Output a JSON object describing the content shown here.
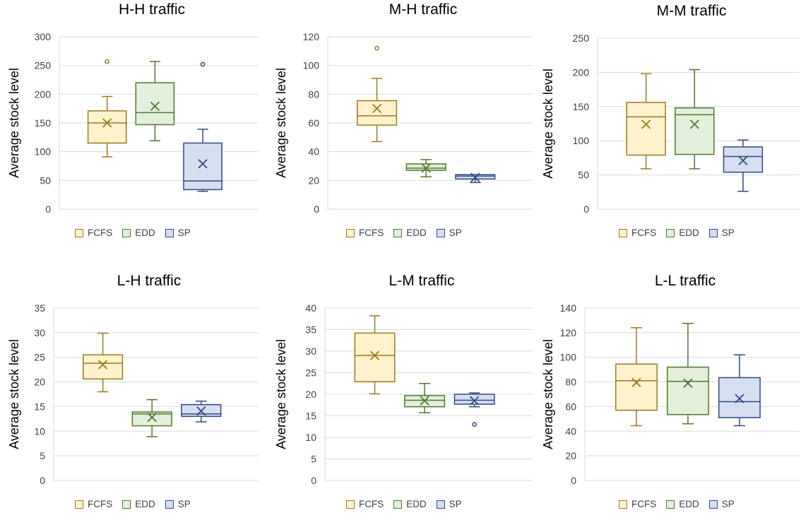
{
  "palette": {
    "FCFS": {
      "stroke": "#9C7A1E",
      "fill": "#FFF2CC"
    },
    "EDD": {
      "stroke": "#4E7A2E",
      "fill": "#E2EFDA"
    },
    "SP": {
      "stroke": "#2F4A84",
      "fill": "#D6DFF0"
    },
    "grid": "#D9D9D9",
    "text": "#404040"
  },
  "chart_data": [
    {
      "type": "boxplot",
      "title": "H-H traffic",
      "ylabel": "Average stock level",
      "ylim": [
        0,
        300
      ],
      "yticks": [
        "0",
        "50",
        "100",
        "150",
        "200",
        "250",
        "300"
      ],
      "grid": true,
      "legend_position": "bottom",
      "series": [
        {
          "name": "FCFS",
          "min": 91,
          "q1": 115,
          "median": 150,
          "q3": 171,
          "max": 196,
          "mean": 150,
          "outliers": [
            257
          ]
        },
        {
          "name": "EDD",
          "min": 119,
          "q1": 147,
          "median": 168,
          "q3": 220,
          "max": 257,
          "mean": 179,
          "outliers": []
        },
        {
          "name": "SP",
          "min": 31,
          "q1": 34,
          "median": 49,
          "q3": 115,
          "max": 139,
          "mean": 79,
          "outliers": [
            252
          ]
        }
      ]
    },
    {
      "type": "boxplot",
      "title": "M-H traffic",
      "ylabel": "Average stock level",
      "ylim": [
        0,
        120
      ],
      "yticks": [
        "0",
        "20",
        "40",
        "60",
        "80",
        "100",
        "120"
      ],
      "grid": true,
      "legend_position": "bottom",
      "series": [
        {
          "name": "FCFS",
          "min": 47,
          "q1": 58.5,
          "median": 65,
          "q3": 75.5,
          "max": 91,
          "mean": 70,
          "outliers": [
            112
          ]
        },
        {
          "name": "EDD",
          "min": 22.5,
          "q1": 27,
          "median": 28.5,
          "q3": 31.5,
          "max": 34.5,
          "mean": 28.5,
          "outliers": []
        },
        {
          "name": "SP",
          "min": 18.5,
          "q1": 21,
          "median": 23,
          "q3": 24,
          "max": 24,
          "mean": 22,
          "outliers": []
        }
      ]
    },
    {
      "type": "boxplot",
      "title": "M-M traffic",
      "ylabel": "Average stock level",
      "ylim": [
        0,
        250
      ],
      "yticks": [
        "0",
        "50",
        "100",
        "150",
        "200",
        "250"
      ],
      "grid": true,
      "legend_position": "bottom",
      "series": [
        {
          "name": "FCFS",
          "min": 59,
          "q1": 79,
          "median": 135,
          "q3": 156,
          "max": 198,
          "mean": 124,
          "outliers": []
        },
        {
          "name": "EDD",
          "min": 59,
          "q1": 80,
          "median": 138,
          "q3": 148,
          "max": 204,
          "mean": 124,
          "outliers": []
        },
        {
          "name": "SP",
          "min": 26,
          "q1": 54,
          "median": 77,
          "q3": 91,
          "max": 101,
          "mean": 71,
          "outliers": []
        }
      ]
    },
    {
      "type": "boxplot",
      "title": "L-H traffic",
      "ylabel": "Average stock level",
      "ylim": [
        0,
        35
      ],
      "yticks": [
        "0",
        "5",
        "10",
        "15",
        "20",
        "25",
        "30",
        "35"
      ],
      "grid": true,
      "legend_position": "bottom",
      "series": [
        {
          "name": "FCFS",
          "min": 18,
          "q1": 20.6,
          "median": 23.8,
          "q3": 25.5,
          "max": 29.9,
          "mean": 23.5,
          "outliers": []
        },
        {
          "name": "EDD",
          "min": 8.9,
          "q1": 11.1,
          "median": 13.5,
          "q3": 13.9,
          "max": 16.4,
          "mean": 12.8,
          "outliers": []
        },
        {
          "name": "SP",
          "min": 11.9,
          "q1": 13,
          "median": 13.5,
          "q3": 15.4,
          "max": 16.1,
          "mean": 14.1,
          "outliers": []
        }
      ]
    },
    {
      "type": "boxplot",
      "title": "L-M traffic",
      "ylabel": "Average stock level",
      "ylim": [
        0,
        40
      ],
      "yticks": [
        "0",
        "5",
        "10",
        "15",
        "20",
        "25",
        "30",
        "35",
        "40"
      ],
      "grid": true,
      "legend_position": "bottom",
      "series": [
        {
          "name": "FCFS",
          "min": 20.1,
          "q1": 22.9,
          "median": 29,
          "q3": 34.2,
          "max": 38.2,
          "mean": 29,
          "outliers": []
        },
        {
          "name": "EDD",
          "min": 15.7,
          "q1": 17.1,
          "median": 18.6,
          "q3": 19.7,
          "max": 22.5,
          "mean": 18.5,
          "outliers": []
        },
        {
          "name": "SP",
          "min": 17.1,
          "q1": 17.7,
          "median": 18.6,
          "q3": 20,
          "max": 20.3,
          "mean": 18.5,
          "outliers": [
            13
          ]
        }
      ]
    },
    {
      "type": "boxplot",
      "title": "L-L traffic",
      "ylabel": "Average stock level",
      "ylim": [
        0,
        140
      ],
      "yticks": [
        "0",
        "20",
        "40",
        "60",
        "80",
        "100",
        "120",
        "140"
      ],
      "grid": true,
      "legend_position": "bottom",
      "series": [
        {
          "name": "FCFS",
          "min": 44.5,
          "q1": 57,
          "median": 81,
          "q3": 94.5,
          "max": 124,
          "mean": 79.5,
          "outliers": []
        },
        {
          "name": "EDD",
          "min": 46,
          "q1": 53.5,
          "median": 80.5,
          "q3": 92,
          "max": 127.5,
          "mean": 79,
          "outliers": []
        },
        {
          "name": "SP",
          "min": 44.5,
          "q1": 51,
          "median": 64,
          "q3": 83.5,
          "max": 102,
          "mean": 66.5,
          "outliers": []
        }
      ]
    }
  ]
}
